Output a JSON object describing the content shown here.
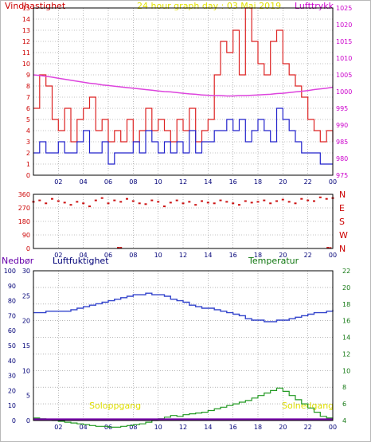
{
  "header": {
    "left_label": "Vindhastighet",
    "center_label": "24 hour graph day : 03 Mai 2019",
    "right_label": "Lufttrykk"
  },
  "lower_header": {
    "left_label": "Nedbør",
    "mid_label": "Luftfuktighet",
    "right_label": "Temperatur"
  },
  "in_chart_labels": {
    "left": "Soloppgang",
    "right": "Solnedgang"
  },
  "colors": {
    "wind_max": "#dd2222",
    "wind_avg": "#2222cc",
    "pressure": "#dd44dd",
    "direction": "#cc1111",
    "humidity": "#3344cc",
    "temperature": "#229922",
    "rain": "#7700aa",
    "sun_label": "#e0e000",
    "grid": "#888888",
    "axis_text_left": "#cc0000",
    "axis_text_right": "#cc00cc"
  },
  "x_ticks": [
    "02",
    "04",
    "06",
    "08",
    "10",
    "12",
    "14",
    "16",
    "18",
    "20",
    "22",
    "00"
  ],
  "chart_data": [
    {
      "type": "line",
      "id": "wind-pressure",
      "x_hours": [
        0,
        0.5,
        1,
        1.5,
        2,
        2.5,
        3,
        3.5,
        4,
        4.5,
        5,
        5.5,
        6,
        6.5,
        7,
        7.5,
        8,
        8.5,
        9,
        9.5,
        10,
        10.5,
        11,
        11.5,
        12,
        12.5,
        13,
        13.5,
        14,
        14.5,
        15,
        15.5,
        16,
        16.5,
        17,
        17.5,
        18,
        18.5,
        19,
        19.5,
        20,
        20.5,
        21,
        21.5,
        22,
        22.5,
        23,
        23.5,
        24
      ],
      "series": [
        {
          "values": [
            6,
            9,
            8,
            5,
            4,
            6,
            3,
            5,
            6,
            7,
            4,
            5,
            3,
            4,
            3,
            5,
            3,
            4,
            6,
            4,
            5,
            4,
            3,
            5,
            4,
            6,
            3,
            4,
            5,
            9,
            12,
            11,
            13,
            9,
            15,
            12,
            10,
            9,
            12,
            13,
            10,
            9,
            8,
            7,
            5,
            4,
            3,
            4,
            3
          ],
          "axis": "left"
        },
        {
          "values": [
            2,
            3,
            2,
            2,
            3,
            2,
            2,
            3,
            4,
            2,
            2,
            3,
            1,
            2,
            2,
            2,
            3,
            2,
            4,
            3,
            2,
            3,
            2,
            3,
            2,
            4,
            2,
            3,
            3,
            4,
            4,
            5,
            4,
            5,
            3,
            4,
            5,
            4,
            3,
            6,
            5,
            4,
            3,
            2,
            2,
            2,
            1,
            1,
            1
          ],
          "axis": "left"
        },
        {
          "values": [
            1005,
            1004.8,
            1004.6,
            1004.3,
            1004,
            1003.7,
            1003.4,
            1003.1,
            1002.8,
            1002.5,
            1002.3,
            1002,
            1001.8,
            1001.6,
            1001.4,
            1001.2,
            1001,
            1000.8,
            1000.6,
            1000.4,
            1000.2,
            1000,
            999.9,
            999.7,
            999.5,
            999.3,
            999.2,
            999,
            998.9,
            998.8,
            998.8,
            998.7,
            998.7,
            998.8,
            998.8,
            998.9,
            999,
            999.1,
            999.2,
            999.4,
            999.5,
            999.7,
            999.9,
            1000.1,
            1000.3,
            1000.6,
            1000.8,
            1001,
            1001.3
          ],
          "axis": "right"
        }
      ],
      "x_range": [
        0,
        24
      ],
      "ylim_left": [
        0,
        15
      ],
      "ylim_right": [
        975,
        1025
      ],
      "y_ticks_left": [
        "0",
        "1",
        "2",
        "3",
        "4",
        "5",
        "6",
        "7",
        "8",
        "9",
        "10",
        "11",
        "12",
        "13",
        "14",
        "15"
      ],
      "y_ticks_right": [
        "975",
        "980",
        "985",
        "990",
        "995",
        "1000",
        "1005",
        "1010",
        "1015",
        "1020",
        "1025"
      ],
      "grid": true
    },
    {
      "type": "scatter",
      "id": "wind-direction",
      "x_hours": [
        0,
        0.5,
        1,
        1.5,
        2,
        2.5,
        3,
        3.5,
        4,
        4.5,
        5,
        5.5,
        6,
        6.5,
        7,
        7.5,
        8,
        8.5,
        9,
        9.5,
        10,
        10.5,
        11,
        11.5,
        12,
        12.5,
        13,
        13.5,
        14,
        14.5,
        15,
        15.5,
        16,
        16.5,
        17,
        17.5,
        18,
        18.5,
        19,
        19.5,
        20,
        20.5,
        21,
        21.5,
        22,
        22.5,
        23,
        23.5,
        24
      ],
      "values": [
        310,
        320,
        300,
        330,
        315,
        305,
        290,
        310,
        300,
        280,
        320,
        335,
        300,
        320,
        310,
        330,
        315,
        300,
        295,
        320,
        310,
        280,
        305,
        320,
        300,
        310,
        290,
        315,
        305,
        300,
        320,
        310,
        300,
        290,
        315,
        305,
        310,
        320,
        300,
        315,
        325,
        310,
        300,
        330,
        320,
        315,
        340,
        330,
        335
      ],
      "extra_points": [
        {
          "x": 6.8,
          "y": 5
        },
        {
          "x": 7.0,
          "y": 5
        },
        {
          "x": 23.6,
          "y": 5
        },
        {
          "x": 23.8,
          "y": 3
        }
      ],
      "ylim": [
        0,
        360
      ],
      "y_ticks_left": [
        "0",
        "90",
        "180",
        "270",
        "360"
      ],
      "y_ticks_right": [
        "N",
        "W",
        "S",
        "E",
        "N"
      ],
      "grid": true
    },
    {
      "type": "line",
      "id": "humidity-temp-rain",
      "x_hours": [
        0,
        0.5,
        1,
        1.5,
        2,
        2.5,
        3,
        3.5,
        4,
        4.5,
        5,
        5.5,
        6,
        6.5,
        7,
        7.5,
        8,
        8.5,
        9,
        9.5,
        10,
        10.5,
        11,
        11.5,
        12,
        12.5,
        13,
        13.5,
        14,
        14.5,
        15,
        15.5,
        16,
        16.5,
        17,
        17.5,
        18,
        18.5,
        19,
        19.5,
        20,
        20.5,
        21,
        21.5,
        22,
        22.5,
        23,
        23.5,
        24
      ],
      "series": [
        {
          "values": [
            72,
            72,
            73,
            73,
            73,
            73,
            74,
            75,
            76,
            77,
            78,
            79,
            80,
            81,
            82,
            83,
            84,
            84,
            85,
            84,
            84,
            83,
            81,
            80,
            79,
            77,
            76,
            75,
            75,
            74,
            73,
            72,
            71,
            70,
            68,
            67,
            67,
            66,
            66,
            67,
            67,
            68,
            69,
            70,
            71,
            72,
            72,
            73,
            74
          ],
          "axis": "humidity"
        },
        {
          "values": [
            4.3,
            4.2,
            4.1,
            4.0,
            3.9,
            3.8,
            3.7,
            3.6,
            3.5,
            3.4,
            3.3,
            3.3,
            3.2,
            3.2,
            3.3,
            3.4,
            3.5,
            3.6,
            3.8,
            4.0,
            4.2,
            4.4,
            4.6,
            4.5,
            4.7,
            4.8,
            4.9,
            5.0,
            5.2,
            5.4,
            5.6,
            5.8,
            6.0,
            6.2,
            6.4,
            6.7,
            7.0,
            7.3,
            7.6,
            7.9,
            7.5,
            7.0,
            6.5,
            6.0,
            5.5,
            5.0,
            4.5,
            4.3,
            4.2
          ],
          "axis": "temperature"
        },
        {
          "values": [
            0,
            0,
            0,
            0,
            0,
            0,
            0,
            0,
            0,
            0,
            0,
            0,
            0,
            0,
            0,
            0,
            0,
            0,
            0,
            0,
            0,
            0,
            0,
            0,
            0,
            0,
            0,
            0,
            0,
            0,
            0,
            0,
            0,
            0,
            0,
            0,
            0,
            0,
            0,
            0,
            0,
            0,
            0,
            0,
            0,
            0,
            0,
            0,
            0
          ],
          "axis": "rain"
        }
      ],
      "x_range": [
        0,
        24
      ],
      "ylim_rain": [
        0,
        100
      ],
      "ylim_humidity": [
        0,
        30
      ],
      "ylim_temperature": [
        4,
        22
      ],
      "y_ticks_rain": [
        "0",
        "10",
        "20",
        "30",
        "40",
        "50",
        "60",
        "70",
        "80",
        "90",
        "100"
      ],
      "y_ticks_humidity": [
        "0",
        "5",
        "10",
        "15",
        "20",
        "25",
        "30"
      ],
      "y_ticks_temperature": [
        "4",
        "6",
        "8",
        "10",
        "12",
        "14",
        "16",
        "18",
        "20",
        "22"
      ],
      "grid": true
    }
  ]
}
